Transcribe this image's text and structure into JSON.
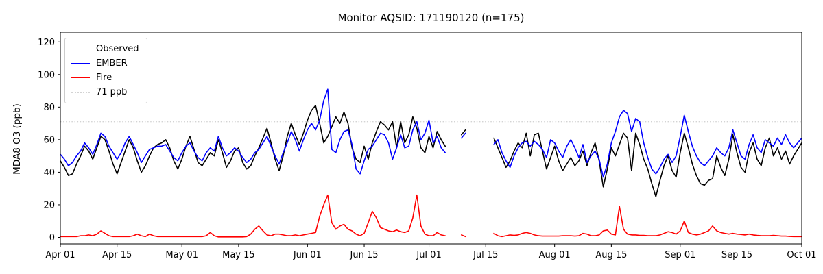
{
  "figure": {
    "title": "Monitor AQSID: 171190120 (n=175)"
  },
  "legend": {
    "items": [
      {
        "label": "Observed",
        "color": "#000000",
        "style": "solid"
      },
      {
        "label": "EMBER",
        "color": "#0000ff",
        "style": "solid"
      },
      {
        "label": "Fire",
        "color": "#ff0000",
        "style": "solid"
      },
      {
        "label": "71 ppb",
        "color": "#d3d3d3",
        "style": "dotted"
      }
    ]
  },
  "chart_data": {
    "type": "line",
    "title": "Monitor AQSID: 171190120 (n=175)",
    "xlabel": "",
    "ylabel": "MDA8 O3 (ppb)",
    "n_points": 175,
    "grid": false,
    "legend_position": "upper left",
    "x_start_date": "Apr 01",
    "x_end_date": "Oct 01",
    "x_range_days": [
      0,
      183
    ],
    "ylim": [
      -4,
      126
    ],
    "y_ticks": [
      0,
      20,
      40,
      60,
      80,
      100,
      120
    ],
    "x_ticks": [
      {
        "label": "Apr 01",
        "day": 0
      },
      {
        "label": "Apr 15",
        "day": 14
      },
      {
        "label": "May 01",
        "day": 30
      },
      {
        "label": "May 15",
        "day": 44
      },
      {
        "label": "Jun 01",
        "day": 61
      },
      {
        "label": "Jun 15",
        "day": 75
      },
      {
        "label": "Jul 01",
        "day": 91
      },
      {
        "label": "Jul 15",
        "day": 105
      },
      {
        "label": "Aug 01",
        "day": 122
      },
      {
        "label": "Aug 15",
        "day": 136
      },
      {
        "label": "Sep 01",
        "day": 153
      },
      {
        "label": "Sep 15",
        "day": 167
      },
      {
        "label": "Oct 01",
        "day": 183
      }
    ],
    "threshold": {
      "label": "71 ppb",
      "value": 71,
      "color": "#d3d3d3",
      "style": "dotted"
    },
    "series": [
      {
        "name": "Observed",
        "color": "#000000",
        "values": [
          47,
          43,
          38,
          39,
          45,
          50,
          56,
          53,
          48,
          55,
          62,
          60,
          53,
          45,
          39,
          46,
          53,
          60,
          55,
          47,
          40,
          44,
          50,
          55,
          57,
          58,
          60,
          55,
          47,
          42,
          48,
          56,
          62,
          54,
          46,
          44,
          48,
          52,
          50,
          60,
          52,
          43,
          47,
          53,
          55,
          46,
          42,
          44,
          50,
          55,
          61,
          67,
          58,
          48,
          41,
          50,
          62,
          70,
          63,
          57,
          64,
          72,
          78,
          81,
          70,
          58,
          62,
          68,
          74,
          70,
          77,
          70,
          55,
          48,
          46,
          56,
          48,
          58,
          65,
          71,
          69,
          66,
          71,
          55,
          71,
          58,
          63,
          74,
          67,
          55,
          52,
          62,
          55,
          65,
          60,
          56,
          null,
          null,
          null,
          63,
          66,
          null,
          null,
          null,
          null,
          null,
          null,
          61,
          55,
          49,
          43,
          47,
          53,
          58,
          55,
          64,
          50,
          63,
          64,
          53,
          42,
          49,
          56,
          47,
          41,
          45,
          49,
          44,
          47,
          53,
          44,
          52,
          58,
          47,
          31,
          42,
          55,
          50,
          57,
          64,
          61,
          41,
          64,
          57,
          48,
          42,
          33,
          25,
          35,
          44,
          50,
          41,
          37,
          52,
          64,
          55,
          45,
          38,
          33,
          32,
          35,
          36,
          50,
          43,
          38,
          48,
          63,
          52,
          43,
          40,
          52,
          58,
          48,
          44,
          55,
          61,
          50,
          55,
          48,
          53,
          45,
          50,
          54,
          58
        ]
      },
      {
        "name": "EMBER",
        "color": "#0000ff",
        "values": [
          51,
          48,
          44,
          46,
          50,
          53,
          58,
          55,
          51,
          57,
          64,
          62,
          56,
          52,
          48,
          52,
          58,
          62,
          57,
          52,
          46,
          50,
          54,
          55,
          56,
          56,
          57,
          53,
          49,
          47,
          52,
          56,
          58,
          53,
          49,
          47,
          52,
          55,
          53,
          62,
          55,
          50,
          52,
          55,
          53,
          49,
          46,
          48,
          52,
          54,
          58,
          62,
          56,
          50,
          45,
          52,
          58,
          65,
          60,
          53,
          60,
          66,
          70,
          66,
          72,
          84,
          91,
          54,
          52,
          60,
          65,
          66,
          57,
          42,
          39,
          47,
          54,
          56,
          60,
          64,
          63,
          58,
          48,
          55,
          63,
          55,
          56,
          66,
          71,
          60,
          64,
          72,
          58,
          62,
          55,
          52,
          null,
          null,
          null,
          61,
          64,
          null,
          null,
          null,
          null,
          null,
          null,
          57,
          60,
          52,
          47,
          43,
          50,
          55,
          58,
          59,
          56,
          59,
          57,
          54,
          49,
          60,
          58,
          53,
          49,
          56,
          60,
          55,
          49,
          57,
          46,
          50,
          53,
          48,
          37,
          45,
          58,
          65,
          74,
          78,
          76,
          65,
          73,
          71,
          58,
          49,
          42,
          39,
          43,
          48,
          51,
          46,
          50,
          62,
          75,
          65,
          56,
          50,
          46,
          44,
          47,
          50,
          55,
          52,
          50,
          55,
          66,
          58,
          50,
          48,
          57,
          63,
          55,
          52,
          60,
          58,
          56,
          61,
          57,
          63,
          58,
          55,
          58,
          61
        ]
      },
      {
        "name": "Fire",
        "color": "#ff0000",
        "values": [
          0.5,
          0.5,
          0.5,
          0.5,
          0.5,
          1,
          1,
          1.5,
          1,
          2,
          4,
          2.5,
          1,
          0.5,
          0.5,
          0.5,
          0.5,
          0.5,
          1,
          2,
          1,
          0.5,
          2,
          1,
          0.5,
          0.5,
          0.5,
          0.5,
          0.5,
          0.5,
          0.5,
          0.5,
          0.5,
          0.5,
          0.5,
          0.5,
          1,
          3,
          1,
          0.3,
          0.3,
          0.3,
          0.3,
          0.3,
          0.3,
          0.3,
          0.5,
          2,
          5,
          7,
          4,
          1.5,
          1,
          2,
          2,
          1.5,
          1,
          1,
          1.5,
          1,
          1.5,
          2,
          2.5,
          3,
          13,
          20,
          26,
          9,
          5,
          7,
          8,
          5,
          4,
          2,
          1,
          2.5,
          9,
          16,
          12,
          6,
          5,
          4,
          3.5,
          4.5,
          3.5,
          3,
          4,
          12,
          26,
          7,
          2,
          1,
          1,
          3,
          1.5,
          1,
          null,
          null,
          null,
          1.5,
          0.5,
          null,
          null,
          null,
          null,
          null,
          null,
          2.5,
          1,
          0.5,
          1,
          1.5,
          1.2,
          1.5,
          2.5,
          3,
          2.5,
          1.5,
          1,
          0.8,
          0.8,
          0.8,
          0.8,
          0.8,
          1,
          1,
          1,
          0.8,
          1,
          2.5,
          2,
          1,
          1,
          1.5,
          4,
          4.5,
          2,
          1.5,
          19,
          5,
          2,
          1.5,
          1.5,
          1.2,
          1.2,
          1,
          1,
          1,
          1.5,
          2.5,
          3.5,
          3,
          2,
          4,
          10,
          3,
          2,
          1.5,
          2,
          3,
          4,
          7,
          4,
          3,
          2.5,
          2,
          2.5,
          2,
          1.8,
          1.5,
          2,
          1.5,
          1.2,
          1,
          1,
          1,
          1.2,
          1,
          0.8,
          0.8,
          0.6,
          0.5,
          0.5,
          0.5
        ]
      }
    ]
  }
}
